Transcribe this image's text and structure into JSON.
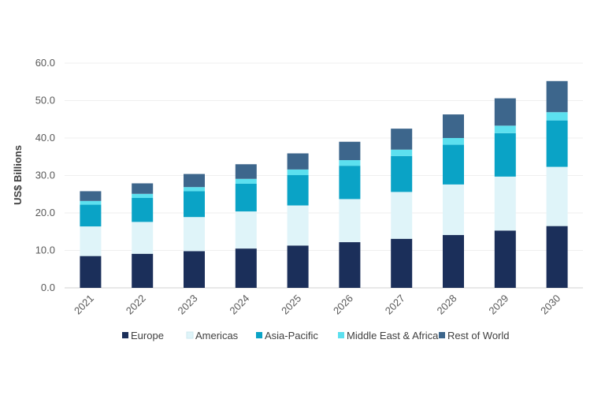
{
  "chart_data": {
    "type": "bar",
    "stacked": true,
    "title": "",
    "xlabel": "",
    "ylabel": "US$ Billions",
    "ylim": [
      0,
      60
    ],
    "yticks": [
      "0.0",
      "10.0",
      "20.0",
      "30.0",
      "40.0",
      "50.0",
      "60.0"
    ],
    "grid": true,
    "legend_position": "bottom",
    "categories": [
      "2021",
      "2022",
      "2023",
      "2024",
      "2025",
      "2026",
      "2027",
      "2028",
      "2029",
      "2030"
    ],
    "series": [
      {
        "name": "Europe",
        "color": "#1b2f5a",
        "values": [
          8.5,
          9.1,
          9.8,
          10.5,
          11.3,
          12.2,
          13.1,
          14.1,
          15.3,
          16.5
        ]
      },
      {
        "name": "Americas",
        "color": "#dff4f9",
        "values": [
          7.9,
          8.5,
          9.1,
          9.9,
          10.7,
          11.5,
          12.5,
          13.5,
          14.4,
          15.8
        ]
      },
      {
        "name": "Asia-Pacific",
        "color": "#0aa3c6",
        "values": [
          5.8,
          6.4,
          6.9,
          7.4,
          8.1,
          8.9,
          9.6,
          10.6,
          11.6,
          12.4
        ]
      },
      {
        "name": "Middle East & Africa",
        "color": "#5ce0ef",
        "values": [
          1.0,
          1.1,
          1.1,
          1.3,
          1.5,
          1.5,
          1.7,
          1.8,
          2.0,
          2.2
        ]
      },
      {
        "name": "Rest of World",
        "color": "#3d668c",
        "values": [
          2.6,
          2.8,
          3.5,
          3.9,
          4.3,
          4.9,
          5.6,
          6.3,
          7.3,
          8.3
        ]
      }
    ]
  }
}
